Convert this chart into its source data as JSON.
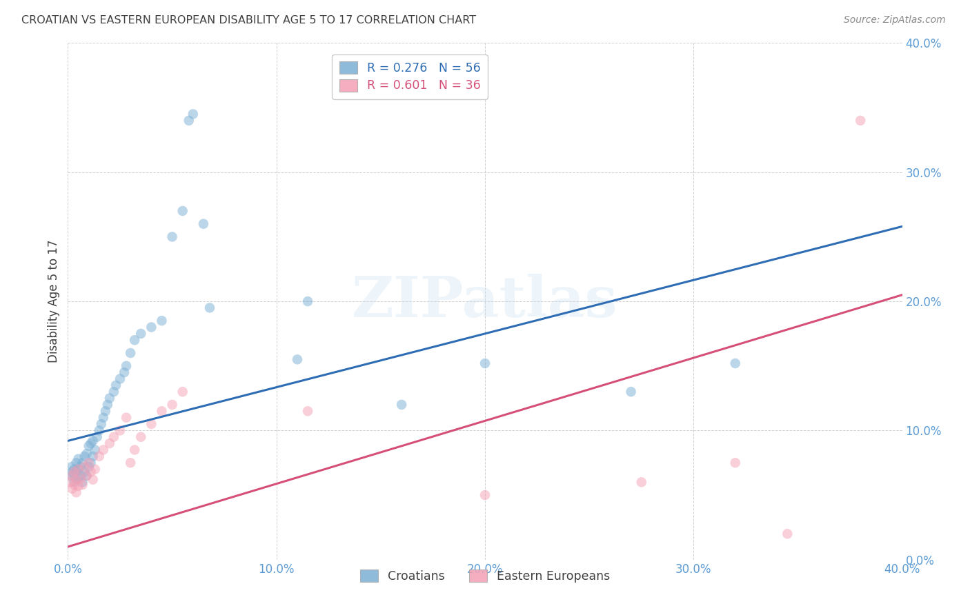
{
  "title": "CROATIAN VS EASTERN EUROPEAN DISABILITY AGE 5 TO 17 CORRELATION CHART",
  "source": "Source: ZipAtlas.com",
  "ylabel": "Disability Age 5 to 17",
  "xmin": 0.0,
  "xmax": 0.4,
  "ymin": 0.0,
  "ymax": 0.4,
  "yticks": [
    0.0,
    0.1,
    0.2,
    0.3,
    0.4
  ],
  "xticks": [
    0.0,
    0.1,
    0.2,
    0.3,
    0.4
  ],
  "blue_R": 0.276,
  "blue_N": 56,
  "pink_R": 0.601,
  "pink_N": 36,
  "blue_color": "#7bafd4",
  "pink_color": "#f4a0b5",
  "blue_line_color": "#2e6db4",
  "pink_line_color": "#d64f78",
  "title_color": "#404040",
  "tick_color": "#5b9bd5",
  "watermark_text": "ZIPatlas",
  "blue_scatter_x": [
    0.001,
    0.002,
    0.002,
    0.003,
    0.003,
    0.003,
    0.004,
    0.004,
    0.004,
    0.005,
    0.005,
    0.005,
    0.006,
    0.006,
    0.007,
    0.007,
    0.008,
    0.008,
    0.009,
    0.009,
    0.01,
    0.01,
    0.011,
    0.011,
    0.012,
    0.012,
    0.013,
    0.014,
    0.015,
    0.016,
    0.017,
    0.018,
    0.019,
    0.02,
    0.022,
    0.023,
    0.025,
    0.027,
    0.028,
    0.03,
    0.032,
    0.035,
    0.04,
    0.045,
    0.05,
    0.055,
    0.058,
    0.06,
    0.065,
    0.068,
    0.11,
    0.115,
    0.16,
    0.2,
    0.27,
    0.32
  ],
  "blue_scatter_y": [
    0.065,
    0.068,
    0.072,
    0.06,
    0.065,
    0.07,
    0.062,
    0.068,
    0.075,
    0.063,
    0.07,
    0.078,
    0.065,
    0.072,
    0.06,
    0.075,
    0.068,
    0.08,
    0.065,
    0.082,
    0.072,
    0.088,
    0.075,
    0.09,
    0.08,
    0.092,
    0.085,
    0.095,
    0.1,
    0.105,
    0.11,
    0.115,
    0.12,
    0.125,
    0.13,
    0.135,
    0.14,
    0.145,
    0.15,
    0.16,
    0.17,
    0.175,
    0.18,
    0.185,
    0.25,
    0.27,
    0.34,
    0.345,
    0.26,
    0.195,
    0.155,
    0.2,
    0.12,
    0.152,
    0.13,
    0.152
  ],
  "pink_scatter_x": [
    0.001,
    0.002,
    0.002,
    0.003,
    0.003,
    0.004,
    0.004,
    0.005,
    0.005,
    0.006,
    0.007,
    0.008,
    0.009,
    0.01,
    0.011,
    0.012,
    0.013,
    0.015,
    0.017,
    0.02,
    0.022,
    0.025,
    0.028,
    0.03,
    0.032,
    0.035,
    0.04,
    0.045,
    0.05,
    0.055,
    0.115,
    0.2,
    0.275,
    0.32,
    0.345,
    0.38
  ],
  "pink_scatter_y": [
    0.06,
    0.055,
    0.065,
    0.058,
    0.068,
    0.052,
    0.062,
    0.057,
    0.07,
    0.063,
    0.058,
    0.072,
    0.065,
    0.075,
    0.068,
    0.062,
    0.07,
    0.08,
    0.085,
    0.09,
    0.095,
    0.1,
    0.11,
    0.075,
    0.085,
    0.095,
    0.105,
    0.115,
    0.12,
    0.13,
    0.115,
    0.05,
    0.06,
    0.075,
    0.02,
    0.34
  ],
  "blue_line_x0": 0.0,
  "blue_line_y0": 0.092,
  "blue_line_x1": 0.4,
  "blue_line_y1": 0.258,
  "pink_line_x0": 0.0,
  "pink_line_y0": 0.01,
  "pink_line_x1": 0.4,
  "pink_line_y1": 0.205,
  "bg_color": "#ffffff",
  "grid_color": "#cccccc",
  "scatter_size": 110,
  "scatter_alpha": 0.5,
  "line_width": 2.2
}
